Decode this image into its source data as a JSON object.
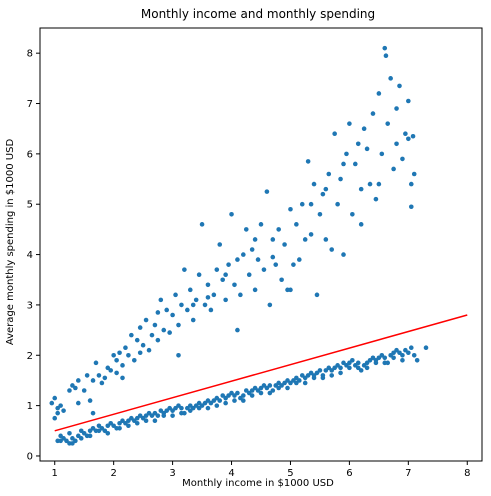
{
  "chart_data": {
    "type": "scatter",
    "title": "Monthly income and monthly spending",
    "xlabel": "Monthly income in $1000 USD",
    "ylabel": "Average monthly spending in $1000 USD",
    "xlim": [
      0.75,
      8.25
    ],
    "ylim": [
      -0.1,
      8.5
    ],
    "x_ticks": [
      1,
      2,
      3,
      4,
      5,
      6,
      7,
      8
    ],
    "y_ticks": [
      0,
      1,
      2,
      3,
      4,
      5,
      6,
      7,
      8
    ],
    "grid": false,
    "colors": {
      "points": "#1f77b4",
      "line": "#ff0000"
    },
    "series": [
      {
        "type": "scatter",
        "points": [
          [
            1.0,
            0.75
          ],
          [
            0.95,
            1.05
          ],
          [
            1.0,
            1.15
          ],
          [
            1.05,
            0.85
          ],
          [
            1.1,
            1.0
          ],
          [
            1.15,
            0.9
          ],
          [
            1.05,
            0.95
          ],
          [
            1.3,
            1.4
          ],
          [
            1.35,
            1.35
          ],
          [
            1.25,
            1.3
          ],
          [
            1.4,
            1.05
          ],
          [
            1.4,
            1.5
          ],
          [
            1.5,
            1.3
          ],
          [
            1.55,
            1.6
          ],
          [
            1.6,
            1.1
          ],
          [
            1.65,
            1.5
          ],
          [
            1.7,
            1.85
          ],
          [
            1.75,
            1.6
          ],
          [
            1.65,
            0.85
          ],
          [
            1.8,
            1.45
          ],
          [
            1.85,
            1.55
          ],
          [
            1.9,
            1.75
          ],
          [
            1.95,
            1.7
          ],
          [
            2.0,
            2.0
          ],
          [
            2.05,
            1.65
          ],
          [
            2.1,
            2.05
          ],
          [
            2.15,
            1.8
          ],
          [
            2.2,
            2.15
          ],
          [
            2.25,
            2.0
          ],
          [
            2.3,
            2.4
          ],
          [
            2.35,
            1.9
          ],
          [
            2.4,
            2.3
          ],
          [
            2.45,
            2.55
          ],
          [
            2.5,
            2.2
          ],
          [
            2.55,
            2.7
          ],
          [
            2.6,
            2.1
          ],
          [
            2.65,
            2.4
          ],
          [
            2.7,
            2.6
          ],
          [
            2.75,
            2.3
          ],
          [
            2.8,
            3.1
          ],
          [
            2.85,
            2.5
          ],
          [
            2.9,
            2.9
          ],
          [
            2.95,
            2.45
          ],
          [
            3.0,
            2.8
          ],
          [
            3.05,
            3.2
          ],
          [
            3.1,
            2.6
          ],
          [
            3.15,
            3.0
          ],
          [
            3.2,
            3.7
          ],
          [
            3.25,
            2.9
          ],
          [
            3.3,
            3.3
          ],
          [
            3.35,
            2.7
          ],
          [
            3.4,
            3.1
          ],
          [
            3.45,
            3.6
          ],
          [
            3.5,
            4.6
          ],
          [
            3.55,
            3.0
          ],
          [
            3.6,
            3.4
          ],
          [
            3.65,
            2.9
          ],
          [
            3.7,
            3.2
          ],
          [
            3.75,
            3.7
          ],
          [
            3.8,
            4.2
          ],
          [
            3.85,
            3.5
          ],
          [
            3.9,
            3.1
          ],
          [
            3.95,
            3.8
          ],
          [
            4.0,
            4.8
          ],
          [
            4.05,
            3.4
          ],
          [
            4.1,
            3.9
          ],
          [
            4.15,
            3.2
          ],
          [
            4.2,
            4.0
          ],
          [
            4.25,
            4.5
          ],
          [
            4.3,
            3.6
          ],
          [
            4.35,
            4.1
          ],
          [
            4.4,
            3.3
          ],
          [
            4.45,
            3.9
          ],
          [
            4.5,
            4.6
          ],
          [
            4.55,
            3.7
          ],
          [
            4.6,
            5.25
          ],
          [
            4.65,
            3.0
          ],
          [
            4.7,
            4.3
          ],
          [
            4.75,
            3.8
          ],
          [
            4.8,
            4.5
          ],
          [
            4.85,
            3.5
          ],
          [
            4.9,
            4.2
          ],
          [
            4.95,
            3.3
          ],
          [
            5.0,
            4.9
          ],
          [
            5.05,
            3.8
          ],
          [
            5.1,
            4.6
          ],
          [
            5.15,
            3.9
          ],
          [
            5.2,
            5.0
          ],
          [
            5.25,
            4.3
          ],
          [
            5.3,
            5.85
          ],
          [
            5.35,
            4.4
          ],
          [
            5.4,
            5.4
          ],
          [
            5.45,
            3.2
          ],
          [
            5.5,
            4.8
          ],
          [
            5.55,
            5.2
          ],
          [
            5.6,
            4.3
          ],
          [
            5.65,
            5.6
          ],
          [
            5.7,
            4.1
          ],
          [
            5.75,
            6.4
          ],
          [
            5.8,
            5.0
          ],
          [
            5.85,
            5.5
          ],
          [
            5.9,
            4.0
          ],
          [
            5.95,
            6.0
          ],
          [
            6.0,
            6.6
          ],
          [
            6.05,
            4.8
          ],
          [
            6.1,
            5.8
          ],
          [
            6.15,
            6.2
          ],
          [
            6.2,
            5.3
          ],
          [
            6.25,
            6.5
          ],
          [
            6.3,
            6.1
          ],
          [
            6.35,
            5.4
          ],
          [
            6.4,
            6.8
          ],
          [
            6.45,
            5.1
          ],
          [
            6.5,
            7.2
          ],
          [
            6.55,
            6.0
          ],
          [
            6.6,
            8.1
          ],
          [
            6.62,
            7.95
          ],
          [
            6.65,
            6.6
          ],
          [
            6.7,
            7.5
          ],
          [
            6.75,
            5.7
          ],
          [
            6.8,
            6.9
          ],
          [
            6.85,
            7.35
          ],
          [
            6.9,
            5.9
          ],
          [
            6.95,
            6.4
          ],
          [
            7.0,
            7.05
          ],
          [
            7.05,
            5.4
          ],
          [
            7.08,
            6.35
          ],
          [
            7.1,
            5.6
          ],
          [
            2.05,
            1.9
          ],
          [
            2.15,
            1.55
          ],
          [
            2.45,
            2.05
          ],
          [
            2.75,
            2.85
          ],
          [
            3.1,
            2.0
          ],
          [
            3.35,
            3.0
          ],
          [
            3.6,
            3.15
          ],
          [
            3.9,
            3.6
          ],
          [
            4.1,
            2.5
          ],
          [
            4.4,
            4.3
          ],
          [
            4.7,
            3.95
          ],
          [
            5.0,
            3.3
          ],
          [
            5.35,
            5.0
          ],
          [
            5.6,
            5.3
          ],
          [
            5.9,
            5.8
          ],
          [
            6.2,
            4.6
          ],
          [
            6.5,
            5.4
          ],
          [
            6.8,
            6.2
          ],
          [
            7.0,
            6.3
          ],
          [
            7.05,
            4.95
          ],
          [
            1.05,
            0.3
          ],
          [
            1.1,
            0.4
          ],
          [
            1.15,
            0.35
          ],
          [
            1.2,
            0.3
          ],
          [
            1.25,
            0.45
          ],
          [
            1.3,
            0.35
          ],
          [
            1.35,
            0.3
          ],
          [
            1.4,
            0.4
          ],
          [
            1.45,
            0.5
          ],
          [
            1.5,
            0.45
          ],
          [
            1.55,
            0.4
          ],
          [
            1.6,
            0.5
          ],
          [
            1.65,
            0.55
          ],
          [
            1.7,
            0.5
          ],
          [
            1.75,
            0.6
          ],
          [
            1.8,
            0.55
          ],
          [
            1.85,
            0.5
          ],
          [
            1.9,
            0.6
          ],
          [
            1.95,
            0.65
          ],
          [
            2.0,
            0.6
          ],
          [
            2.05,
            0.55
          ],
          [
            2.1,
            0.65
          ],
          [
            2.15,
            0.7
          ],
          [
            2.2,
            0.65
          ],
          [
            2.25,
            0.7
          ],
          [
            2.3,
            0.75
          ],
          [
            2.35,
            0.7
          ],
          [
            2.4,
            0.75
          ],
          [
            2.45,
            0.8
          ],
          [
            2.5,
            0.75
          ],
          [
            2.55,
            0.8
          ],
          [
            2.6,
            0.85
          ],
          [
            2.65,
            0.8
          ],
          [
            2.7,
            0.85
          ],
          [
            2.75,
            0.8
          ],
          [
            2.8,
            0.9
          ],
          [
            2.85,
            0.85
          ],
          [
            2.9,
            0.9
          ],
          [
            2.95,
            0.95
          ],
          [
            3.0,
            0.9
          ],
          [
            3.05,
            0.95
          ],
          [
            3.1,
            1.0
          ],
          [
            3.15,
            0.95
          ],
          [
            3.2,
            0.85
          ],
          [
            3.25,
            0.95
          ],
          [
            3.3,
            1.0
          ],
          [
            3.35,
            0.95
          ],
          [
            3.4,
            1.0
          ],
          [
            3.45,
            1.05
          ],
          [
            3.5,
            1.0
          ],
          [
            3.55,
            1.05
          ],
          [
            3.6,
            1.1
          ],
          [
            3.65,
            1.05
          ],
          [
            3.7,
            1.1
          ],
          [
            3.75,
            1.15
          ],
          [
            3.8,
            1.1
          ],
          [
            3.85,
            1.2
          ],
          [
            3.9,
            1.15
          ],
          [
            3.95,
            1.2
          ],
          [
            4.0,
            1.25
          ],
          [
            4.05,
            1.2
          ],
          [
            4.1,
            1.25
          ],
          [
            4.15,
            1.15
          ],
          [
            4.2,
            1.2
          ],
          [
            4.25,
            1.3
          ],
          [
            4.3,
            1.25
          ],
          [
            4.35,
            1.3
          ],
          [
            4.4,
            1.35
          ],
          [
            4.45,
            1.3
          ],
          [
            4.5,
            1.35
          ],
          [
            4.55,
            1.4
          ],
          [
            4.6,
            1.35
          ],
          [
            4.65,
            1.4
          ],
          [
            4.7,
            1.3
          ],
          [
            4.75,
            1.4
          ],
          [
            4.8,
            1.45
          ],
          [
            4.85,
            1.4
          ],
          [
            4.9,
            1.45
          ],
          [
            4.95,
            1.5
          ],
          [
            5.0,
            1.45
          ],
          [
            5.05,
            1.5
          ],
          [
            5.1,
            1.55
          ],
          [
            5.15,
            1.5
          ],
          [
            5.2,
            1.6
          ],
          [
            5.25,
            1.55
          ],
          [
            5.3,
            1.6
          ],
          [
            5.35,
            1.65
          ],
          [
            5.4,
            1.6
          ],
          [
            5.45,
            1.65
          ],
          [
            5.5,
            1.7
          ],
          [
            5.55,
            1.6
          ],
          [
            5.6,
            1.7
          ],
          [
            5.65,
            1.75
          ],
          [
            5.7,
            1.7
          ],
          [
            5.75,
            1.75
          ],
          [
            5.8,
            1.8
          ],
          [
            5.85,
            1.75
          ],
          [
            5.9,
            1.85
          ],
          [
            5.95,
            1.8
          ],
          [
            6.0,
            1.85
          ],
          [
            6.05,
            1.9
          ],
          [
            6.1,
            1.8
          ],
          [
            6.15,
            1.75
          ],
          [
            6.2,
            1.7
          ],
          [
            6.25,
            1.8
          ],
          [
            6.3,
            1.85
          ],
          [
            6.35,
            1.9
          ],
          [
            6.4,
            1.95
          ],
          [
            6.45,
            1.9
          ],
          [
            6.5,
            1.95
          ],
          [
            6.55,
            2.0
          ],
          [
            6.6,
            1.95
          ],
          [
            6.65,
            1.85
          ],
          [
            6.7,
            2.0
          ],
          [
            6.75,
            2.05
          ],
          [
            6.8,
            2.1
          ],
          [
            6.85,
            2.05
          ],
          [
            6.9,
            2.0
          ],
          [
            6.95,
            2.1
          ],
          [
            7.0,
            2.05
          ],
          [
            7.05,
            2.15
          ],
          [
            7.1,
            2.0
          ],
          [
            7.15,
            1.9
          ],
          [
            7.3,
            2.15
          ],
          [
            1.1,
            0.3
          ],
          [
            1.25,
            0.25
          ],
          [
            1.3,
            0.25
          ],
          [
            1.45,
            0.35
          ],
          [
            1.6,
            0.4
          ],
          [
            1.75,
            0.5
          ],
          [
            1.9,
            0.45
          ],
          [
            2.1,
            0.55
          ],
          [
            2.25,
            0.6
          ],
          [
            2.4,
            0.65
          ],
          [
            2.55,
            0.7
          ],
          [
            2.7,
            0.7
          ],
          [
            2.85,
            0.8
          ],
          [
            3.0,
            0.8
          ],
          [
            3.15,
            0.85
          ],
          [
            3.3,
            0.9
          ],
          [
            3.45,
            0.95
          ],
          [
            3.6,
            0.95
          ],
          [
            3.75,
            1.0
          ],
          [
            3.9,
            1.05
          ],
          [
            4.05,
            1.1
          ],
          [
            4.2,
            1.1
          ],
          [
            4.35,
            1.2
          ],
          [
            4.5,
            1.25
          ],
          [
            4.65,
            1.25
          ],
          [
            4.8,
            1.35
          ],
          [
            4.95,
            1.35
          ],
          [
            5.1,
            1.45
          ],
          [
            5.25,
            1.45
          ],
          [
            5.4,
            1.55
          ],
          [
            5.55,
            1.55
          ],
          [
            5.7,
            1.6
          ],
          [
            5.85,
            1.65
          ],
          [
            6.0,
            1.75
          ],
          [
            6.15,
            1.85
          ],
          [
            6.3,
            1.75
          ],
          [
            6.45,
            1.85
          ],
          [
            6.6,
            1.85
          ],
          [
            6.75,
            1.95
          ],
          [
            6.9,
            1.9
          ]
        ]
      },
      {
        "type": "line",
        "points": [
          [
            1,
            0.5
          ],
          [
            8,
            2.8
          ]
        ]
      }
    ]
  }
}
